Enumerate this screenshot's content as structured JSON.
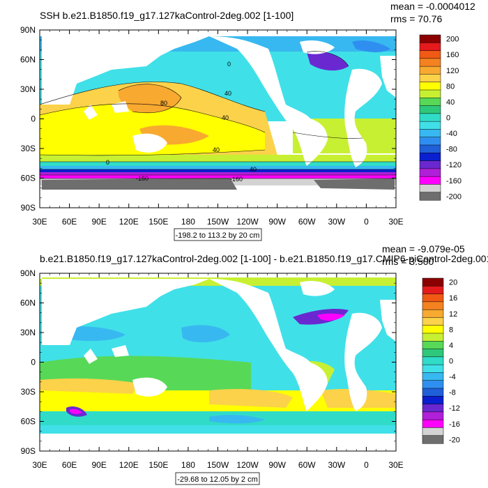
{
  "panels": [
    {
      "title": "SSH b.e21.B1850.f19_g17.127kaControl-2deg.002 [1-100]",
      "mean_text": "mean = -0.0004012",
      "rms_text": "rms = 70.76",
      "range_text": "-198.2 to 113.2 by 20 cm",
      "lat_labels": [
        "90N",
        "60N",
        "30N",
        "0",
        "30S",
        "60S",
        "90S"
      ],
      "lon_labels": [
        "30E",
        "60E",
        "90E",
        "120E",
        "150E",
        "180",
        "150W",
        "120W",
        "90W",
        "60W",
        "30W",
        "0",
        "30E"
      ],
      "contour_labels": [
        "80",
        "40",
        "40",
        "40",
        "0",
        "0",
        "-160",
        "40",
        "-160"
      ],
      "colorbar": {
        "labels": [
          "200",
          "160",
          "120",
          "80",
          "40",
          "0",
          "-40",
          "-80",
          "-120",
          "-160",
          "-200"
        ],
        "colors": [
          "#8b0000",
          "#e41a1c",
          "#f05a14",
          "#f58220",
          "#f8a930",
          "#fbd24a",
          "#ffff00",
          "#c8f032",
          "#57d957",
          "#2ec87a",
          "#30dcc8",
          "#40e0e8",
          "#38b8f0",
          "#2f8ff0",
          "#1f5fd8",
          "#0a1fd0",
          "#6a28d0",
          "#b020d8",
          "#ff00ff",
          "#d3d3d3",
          "#6e6e6e"
        ]
      }
    },
    {
      "title": "b.e21.B1850.f19_g17.127kaControl-2deg.002 [1-100] - b.e21.B1850.f19_g17.CMIP6-piControl-2deg.001",
      "mean_text": "mean = -9.079e-05",
      "rms_text": "rms = 3.500",
      "range_text": "-29.68 to 12.05 by 2 cm",
      "lat_labels": [
        "90N",
        "60N",
        "30N",
        "0",
        "30S",
        "60S",
        "90S"
      ],
      "lon_labels": [
        "30E",
        "60E",
        "90E",
        "120E",
        "150E",
        "180",
        "150W",
        "120W",
        "90W",
        "60W",
        "30W",
        "0",
        "30E"
      ],
      "colorbar": {
        "labels": [
          "20",
          "16",
          "12",
          "8",
          "4",
          "0",
          "-4",
          "-8",
          "-12",
          "-16",
          "-20"
        ],
        "colors": [
          "#8b0000",
          "#e41a1c",
          "#f05a14",
          "#f58220",
          "#f8a930",
          "#fbd24a",
          "#ffff00",
          "#c8f032",
          "#57d957",
          "#2ec87a",
          "#30dcc8",
          "#40e0e8",
          "#38b8f0",
          "#2f8ff0",
          "#1f5fd8",
          "#0a1fd0",
          "#6a28d0",
          "#b020d8",
          "#ff00ff",
          "#d3d3d3",
          "#6e6e6e"
        ]
      }
    }
  ]
}
